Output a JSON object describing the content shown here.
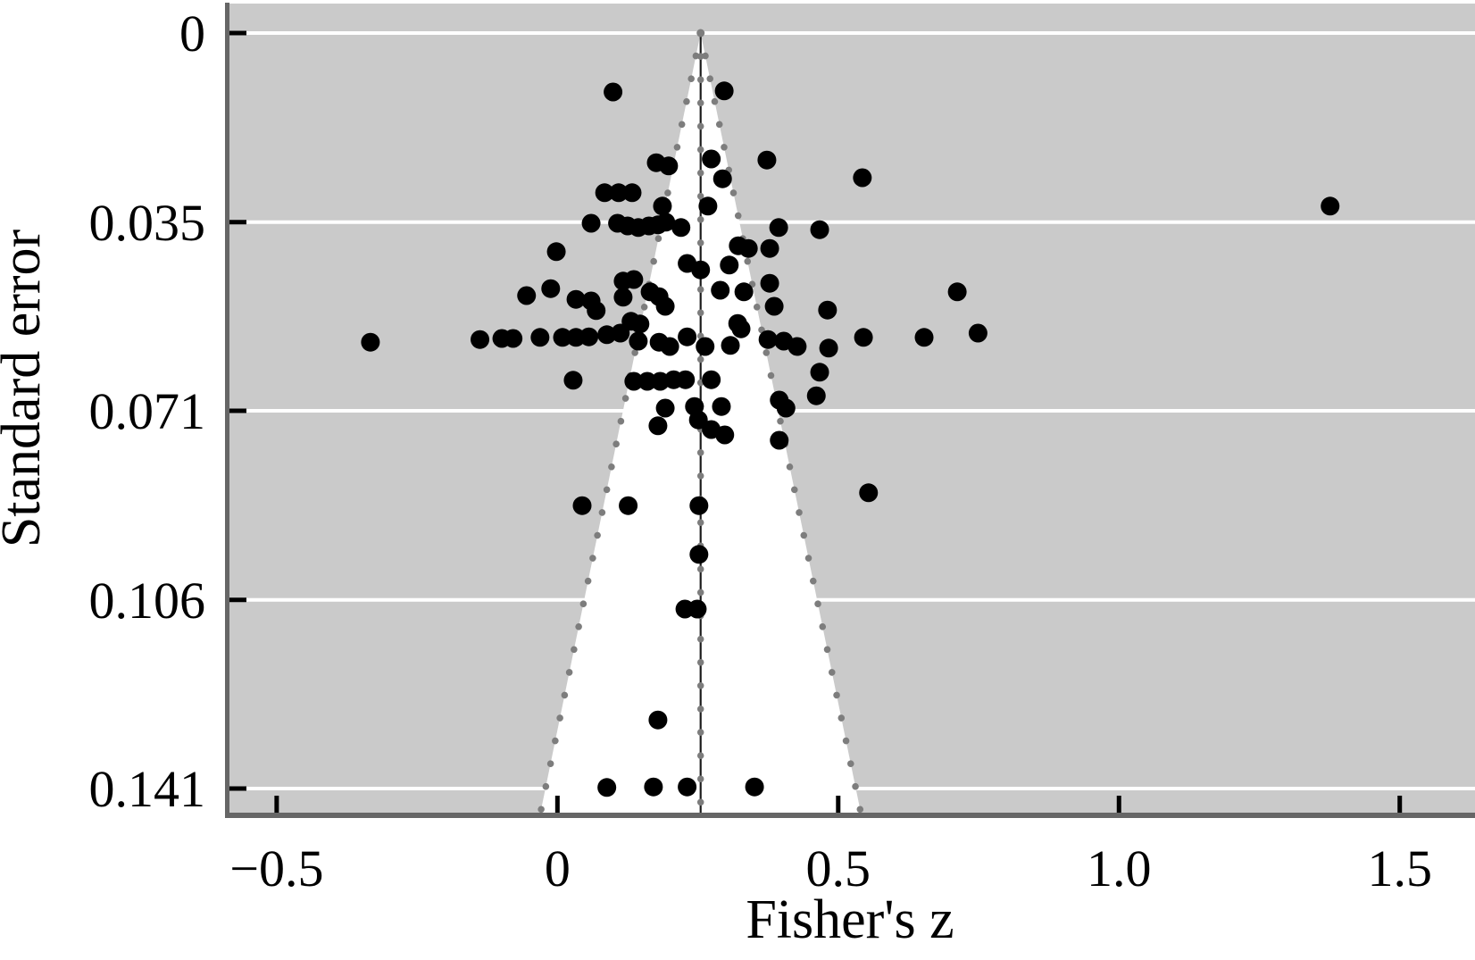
{
  "figure": {
    "xlabel": "Fisher's z",
    "ylabel": "Standard error"
  },
  "colors": {
    "page_bg": "#ffffff",
    "plot_bg": "#cacaca",
    "funnel_fill": "#ffffff",
    "gridline": "#ffffff",
    "spine": "#666666",
    "tick": "#000000",
    "funnel_edge_dots": "#7d7d7d",
    "center_line": "#1c1c1c",
    "point": "#000000"
  },
  "chart_data": {
    "type": "scatter",
    "title": "",
    "xlabel": "Fisher's z",
    "ylabel": "Standard error",
    "grid": true,
    "legend": false,
    "x_axis": {
      "ticks": [
        -0.5,
        0,
        0.5,
        1.0,
        1.5
      ],
      "tick_labels": [
        "−0.5",
        "0",
        "0.5",
        "1.0",
        "1.5"
      ],
      "range": [
        -0.592,
        1.634
      ]
    },
    "y_axis": {
      "tick_values_se": [
        0,
        0.0353,
        0.0705,
        0.1058,
        0.141
      ],
      "tick_labels": [
        "0",
        "0.035",
        "0.071",
        "0.106",
        "0.141"
      ],
      "range_se": [
        -0.0055,
        0.146
      ],
      "inverted": true
    },
    "funnel": {
      "center_z": 0.255,
      "ci_multiplier": 1.96,
      "max_se_drawn": 0.146
    },
    "points": [
      [
        0.099,
        0.011
      ],
      [
        0.297,
        0.0108
      ],
      [
        0.274,
        0.0235
      ],
      [
        0.176,
        0.0242
      ],
      [
        0.198,
        0.0248
      ],
      [
        0.294,
        0.0272
      ],
      [
        0.373,
        0.0237
      ],
      [
        0.543,
        0.027
      ],
      [
        0.084,
        0.0298
      ],
      [
        0.109,
        0.0298
      ],
      [
        0.133,
        0.0298
      ],
      [
        0.187,
        0.0323
      ],
      [
        0.268,
        0.0323
      ],
      [
        0.06,
        0.0355
      ],
      [
        0.107,
        0.0355
      ],
      [
        0.125,
        0.036
      ],
      [
        0.144,
        0.0363
      ],
      [
        0.163,
        0.036
      ],
      [
        0.179,
        0.0358
      ],
      [
        0.193,
        0.0353
      ],
      [
        0.22,
        0.0363
      ],
      [
        0.394,
        0.0363
      ],
      [
        0.467,
        0.0367
      ],
      [
        1.376,
        0.0323
      ],
      [
        -0.002,
        0.0408
      ],
      [
        0.322,
        0.0397
      ],
      [
        0.34,
        0.0402
      ],
      [
        0.378,
        0.0402
      ],
      [
        0.231,
        0.043
      ],
      [
        0.255,
        0.0442
      ],
      [
        0.306,
        0.0433
      ],
      [
        -0.055,
        0.049
      ],
      [
        -0.012,
        0.0477
      ],
      [
        0.033,
        0.0497
      ],
      [
        0.06,
        0.05
      ],
      [
        0.069,
        0.0518
      ],
      [
        0.117,
        0.0463
      ],
      [
        0.136,
        0.046
      ],
      [
        0.117,
        0.0493
      ],
      [
        0.131,
        0.0538
      ],
      [
        0.147,
        0.0543
      ],
      [
        0.165,
        0.0483
      ],
      [
        0.181,
        0.0492
      ],
      [
        0.192,
        0.051
      ],
      [
        0.29,
        0.048
      ],
      [
        0.332,
        0.0483
      ],
      [
        0.378,
        0.0467
      ],
      [
        0.386,
        0.051
      ],
      [
        0.321,
        0.0542
      ],
      [
        0.327,
        0.0552
      ],
      [
        0.481,
        0.0517
      ],
      [
        0.712,
        0.0483
      ],
      [
        -0.333,
        0.0577
      ],
      [
        -0.138,
        0.0572
      ],
      [
        -0.099,
        0.057
      ],
      [
        -0.079,
        0.057
      ],
      [
        -0.031,
        0.0568
      ],
      [
        0.009,
        0.0568
      ],
      [
        0.033,
        0.0568
      ],
      [
        0.056,
        0.0567
      ],
      [
        0.088,
        0.0563
      ],
      [
        0.112,
        0.056
      ],
      [
        0.144,
        0.0575
      ],
      [
        0.181,
        0.0577
      ],
      [
        0.2,
        0.0585
      ],
      [
        0.231,
        0.0567
      ],
      [
        0.263,
        0.0585
      ],
      [
        0.308,
        0.0583
      ],
      [
        0.375,
        0.0572
      ],
      [
        0.403,
        0.0575
      ],
      [
        0.427,
        0.0585
      ],
      [
        0.483,
        0.0588
      ],
      [
        0.545,
        0.0568
      ],
      [
        0.653,
        0.0568
      ],
      [
        0.749,
        0.056
      ],
      [
        0.028,
        0.0648
      ],
      [
        0.136,
        0.065
      ],
      [
        0.16,
        0.065
      ],
      [
        0.183,
        0.065
      ],
      [
        0.207,
        0.0647
      ],
      [
        0.228,
        0.0647
      ],
      [
        0.274,
        0.0647
      ],
      [
        0.467,
        0.0633
      ],
      [
        0.461,
        0.0677
      ],
      [
        0.395,
        0.0685
      ],
      [
        0.407,
        0.07
      ],
      [
        0.192,
        0.07
      ],
      [
        0.179,
        0.0733
      ],
      [
        0.244,
        0.0697
      ],
      [
        0.292,
        0.0697
      ],
      [
        0.251,
        0.0722
      ],
      [
        0.274,
        0.074
      ],
      [
        0.298,
        0.075
      ],
      [
        0.395,
        0.076
      ],
      [
        0.044,
        0.0882
      ],
      [
        0.126,
        0.0882
      ],
      [
        0.252,
        0.0882
      ],
      [
        0.554,
        0.0858
      ],
      [
        0.252,
        0.0973
      ],
      [
        0.227,
        0.1075
      ],
      [
        0.249,
        0.1075
      ],
      [
        0.179,
        0.1282
      ],
      [
        0.088,
        0.1408
      ],
      [
        0.171,
        0.1407
      ],
      [
        0.231,
        0.1407
      ],
      [
        0.351,
        0.1407
      ]
    ]
  }
}
